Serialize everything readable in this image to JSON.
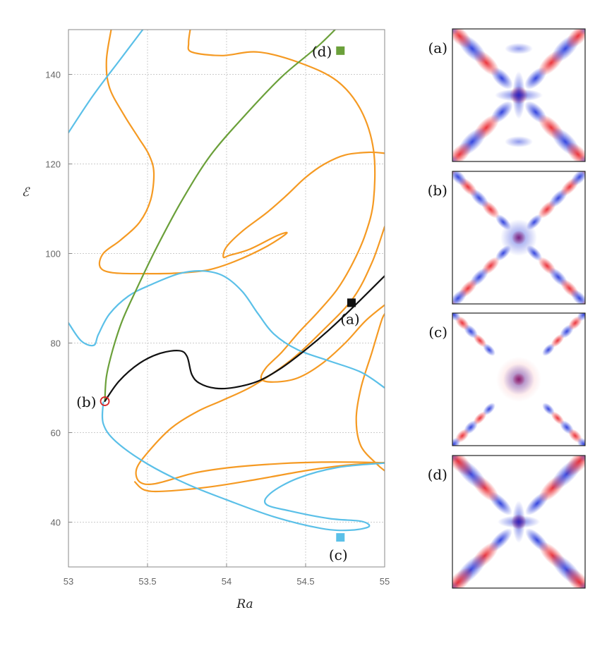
{
  "chart_data": {
    "type": "line",
    "xlabel": "Ra",
    "ylabel": "ℰ",
    "xlim": [
      53,
      55
    ],
    "ylim": [
      30,
      150
    ],
    "x_ticks": [
      53,
      53.5,
      54,
      54.5,
      55
    ],
    "x_tick_labels": [
      "53",
      "53.5",
      "54",
      "54.5",
      "55"
    ],
    "y_ticks": [
      40,
      60,
      80,
      100,
      120,
      140
    ],
    "y_tick_labels": [
      "40",
      "60",
      "80",
      "100",
      "120",
      "140"
    ],
    "grid": true,
    "series": [
      {
        "color": "#f59a23",
        "segments": [
          [
            [
              53.27,
              150
            ],
            [
              53.24,
              143
            ],
            [
              53.26,
              137
            ],
            [
              53.35,
              131
            ],
            [
              53.44,
              126
            ],
            [
              53.51,
              122
            ],
            [
              53.54,
              118
            ],
            [
              53.52,
              112
            ],
            [
              53.45,
              107
            ],
            [
              53.33,
              103
            ],
            [
              53.22,
              100
            ],
            [
              53.2,
              97
            ],
            [
              53.28,
              95.7
            ],
            [
              53.5,
              95.5
            ],
            [
              53.68,
              95.6
            ],
            [
              53.88,
              96.3
            ],
            [
              54.05,
              98.2
            ],
            [
              54.25,
              101.5
            ],
            [
              54.38,
              104.5
            ],
            [
              54.32,
              104
            ],
            [
              54.15,
              101
            ],
            [
              54.02,
              99.6
            ],
            [
              53.98,
              99.2
            ],
            [
              54.0,
              101.5
            ],
            [
              54.1,
              105
            ],
            [
              54.25,
              109
            ],
            [
              54.38,
              113
            ],
            [
              54.5,
              117
            ],
            [
              54.62,
              120
            ],
            [
              54.75,
              122
            ],
            [
              54.9,
              122.6
            ],
            [
              55,
              122.4
            ]
          ],
          [
            [
              53.77,
              150
            ],
            [
              53.76,
              147
            ],
            [
              53.78,
              145
            ],
            [
              53.97,
              144.2
            ],
            [
              54.2,
              145
            ],
            [
              54.47,
              142.5
            ],
            [
              54.7,
              138.5
            ],
            [
              54.85,
              132
            ],
            [
              54.93,
              123
            ],
            [
              54.93,
              112
            ],
            [
              54.88,
              104.5
            ],
            [
              54.8,
              98
            ],
            [
              54.7,
              92
            ],
            [
              54.58,
              87
            ],
            [
              54.46,
              82.5
            ],
            [
              54.35,
              78
            ],
            [
              54.25,
              74.5
            ],
            [
              54.22,
              72
            ],
            [
              54.3,
              71.3
            ],
            [
              54.45,
              72.2
            ],
            [
              54.6,
              75.3
            ],
            [
              54.75,
              80
            ],
            [
              54.88,
              85
            ],
            [
              55,
              88.5
            ]
          ],
          [
            [
              55,
              106
            ],
            [
              54.92,
              98
            ],
            [
              54.8,
              90
            ],
            [
              54.6,
              82.5
            ],
            [
              54.4,
              76
            ],
            [
              54.17,
              70.5
            ],
            [
              53.98,
              67.3
            ],
            [
              53.82,
              64.8
            ],
            [
              53.65,
              61
            ],
            [
              53.5,
              55.5
            ],
            [
              53.43,
              51.8
            ],
            [
              53.45,
              49
            ],
            [
              53.55,
              48.6
            ],
            [
              53.8,
              51
            ],
            [
              54.05,
              52.3
            ],
            [
              54.35,
              53.1
            ],
            [
              54.6,
              53.4
            ],
            [
              54.8,
              53.4
            ],
            [
              54.95,
              53.3
            ],
            [
              55,
              53.2
            ]
          ],
          [
            [
              55,
              51.5
            ],
            [
              54.95,
              53
            ],
            [
              54.85,
              57
            ],
            [
              54.82,
              63
            ],
            [
              54.85,
              70
            ],
            [
              54.92,
              78
            ],
            [
              54.98,
              85
            ],
            [
              55,
              86.5
            ]
          ],
          [
            [
              53.42,
              49
            ],
            [
              53.48,
              47.2
            ],
            [
              53.6,
              46.9
            ],
            [
              53.9,
              47.9
            ],
            [
              54.2,
              49.6
            ],
            [
              54.5,
              51.5
            ],
            [
              54.75,
              52.7
            ],
            [
              54.95,
              53.2
            ],
            [
              55,
              53.3
            ]
          ]
        ]
      },
      {
        "color": "#5bc0e8",
        "segments": [
          [
            [
              53,
              127
            ],
            [
              53.15,
              135
            ],
            [
              53.32,
              143
            ],
            [
              53.47,
              150
            ]
          ],
          [
            [
              53,
              84.5
            ],
            [
              53.08,
              80.5
            ],
            [
              53.16,
              79.5
            ],
            [
              53.19,
              82
            ],
            [
              53.26,
              86.5
            ],
            [
              53.38,
              90.5
            ],
            [
              53.52,
              93
            ],
            [
              53.7,
              95.5
            ],
            [
              53.85,
              96.1
            ],
            [
              53.98,
              95
            ],
            [
              54.1,
              91.5
            ],
            [
              54.2,
              86.5
            ],
            [
              54.3,
              82
            ],
            [
              54.45,
              78.5
            ],
            [
              54.65,
              76
            ],
            [
              54.85,
              73.5
            ],
            [
              55,
              70
            ]
          ],
          [
            [
              53.22,
              66.8
            ],
            [
              53.22,
              62
            ],
            [
              53.3,
              58
            ],
            [
              53.5,
              53
            ],
            [
              53.75,
              48.5
            ],
            [
              54.0,
              45
            ],
            [
              54.3,
              41.2
            ],
            [
              54.6,
              38.6
            ],
            [
              54.78,
              38.2
            ],
            [
              54.9,
              39
            ],
            [
              54.85,
              40.2
            ],
            [
              54.65,
              40.8
            ],
            [
              54.4,
              42.5
            ],
            [
              54.25,
              44
            ],
            [
              54.28,
              46.5
            ],
            [
              54.45,
              49.8
            ],
            [
              54.7,
              52.2
            ],
            [
              55,
              53.2
            ]
          ]
        ]
      },
      {
        "color": "#6ba03a",
        "segments": [
          [
            [
              53.23,
              67
            ],
            [
              53.24,
              72.5
            ],
            [
              53.28,
              78.5
            ],
            [
              53.34,
              85
            ],
            [
              53.43,
              92
            ],
            [
              53.56,
              101.5
            ],
            [
              53.72,
              112
            ],
            [
              53.9,
              122
            ],
            [
              54.12,
              131
            ],
            [
              54.35,
              139.5
            ],
            [
              54.6,
              147
            ],
            [
              54.85,
              156
            ]
          ]
        ]
      },
      {
        "color": "#111111",
        "segments": [
          [
            [
              53.23,
              67
            ],
            [
              53.32,
              71.5
            ],
            [
              53.45,
              75.5
            ],
            [
              53.58,
              77.7
            ],
            [
              53.7,
              78.3
            ],
            [
              53.75,
              77
            ],
            [
              53.78,
              73
            ],
            [
              53.83,
              71
            ],
            [
              53.93,
              69.9
            ],
            [
              54.05,
              70.1
            ],
            [
              54.2,
              71.5
            ],
            [
              54.35,
              74.5
            ],
            [
              54.5,
              78.5
            ],
            [
              54.65,
              83
            ],
            [
              54.8,
              88
            ],
            [
              55,
              95
            ]
          ]
        ]
      }
    ],
    "points": [
      {
        "id": "a",
        "x": 54.79,
        "y": 89,
        "marker": "filled-square",
        "color": "#111111",
        "label": "(a)"
      },
      {
        "id": "b",
        "x": 53.23,
        "y": 67,
        "marker": "open-circle",
        "color": "#d62728",
        "label": "(b)"
      },
      {
        "id": "c",
        "x": 54.72,
        "y": 36.6,
        "marker": "filled-square",
        "color": "#5bc0e8",
        "label": "(c)"
      },
      {
        "id": "d",
        "x": 54.72,
        "y": 145.3,
        "marker": "filled-square",
        "color": "#6ba03a",
        "label": "(d)"
      }
    ],
    "panels": [
      {
        "label": "(a)",
        "pattern": "a"
      },
      {
        "label": "(b)",
        "pattern": "b"
      },
      {
        "label": "(c)",
        "pattern": "c"
      },
      {
        "label": "(d)",
        "pattern": "d"
      }
    ]
  }
}
